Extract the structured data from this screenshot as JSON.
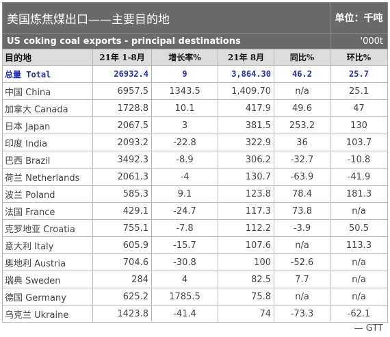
{
  "title": "美国炼焦煤出口——主要目的地",
  "unit": "单位：千吨",
  "subtitle": "US coking coal exports - principal destinations",
  "unit_en": "'000t",
  "headers": [
    "目的地",
    "21年 1-8月",
    "增长率%",
    "21年 8月",
    "同比%",
    "环比%"
  ],
  "rows": [
    [
      "总量 Total",
      "26932.4",
      "9",
      "3,864.30",
      "46.2",
      "25.7"
    ],
    [
      "中国 China",
      "6957.5",
      "1343.5",
      "1,409.70",
      "n/a",
      "25.1"
    ],
    [
      "加拿大 Canada",
      "1728.8",
      "10.1",
      "417.9",
      "49.6",
      "47"
    ],
    [
      "日本 Japan",
      "2067.5",
      "3",
      "381.5",
      "253.2",
      "130"
    ],
    [
      "印度 India",
      "2093.2",
      "-22.8",
      "322.9",
      "36",
      "103.7"
    ],
    [
      "巴西 Brazil",
      "3492.3",
      "-8.9",
      "306.2",
      "-32.7",
      "-10.8"
    ],
    [
      "荷兰 Netherlands",
      "2061.3",
      "-4",
      "130.7",
      "-63.9",
      "-41.9"
    ],
    [
      "波兰 Poland",
      "585.3",
      "9.1",
      "123.8",
      "78.4",
      "181.3"
    ],
    [
      "法国 France",
      "429.1",
      "-24.7",
      "117.3",
      "73.8",
      "n/a"
    ],
    [
      "克罗地亚 Croatia",
      "755.1",
      "-7.8",
      "112.2",
      "-3.9",
      "50.5"
    ],
    [
      "意大利 Italy",
      "605.9",
      "-15.7",
      "107.6",
      "n/a",
      "113.3"
    ],
    [
      "奥地利 Austria",
      "704.6",
      "-30.8",
      "100",
      "-52.6",
      "n/a"
    ],
    [
      "瑞典 Sweden",
      "284",
      "4",
      "82.5",
      "7.7",
      "n/a"
    ],
    [
      "德国 Germany",
      "625.2",
      "1785.5",
      "75.8",
      "n/a",
      "n/a"
    ],
    [
      "乌克兰 Ukraine",
      "1423.8",
      "-41.4",
      "74",
      "-73.3",
      "-62.1"
    ]
  ],
  "source": "— GTT"
}
